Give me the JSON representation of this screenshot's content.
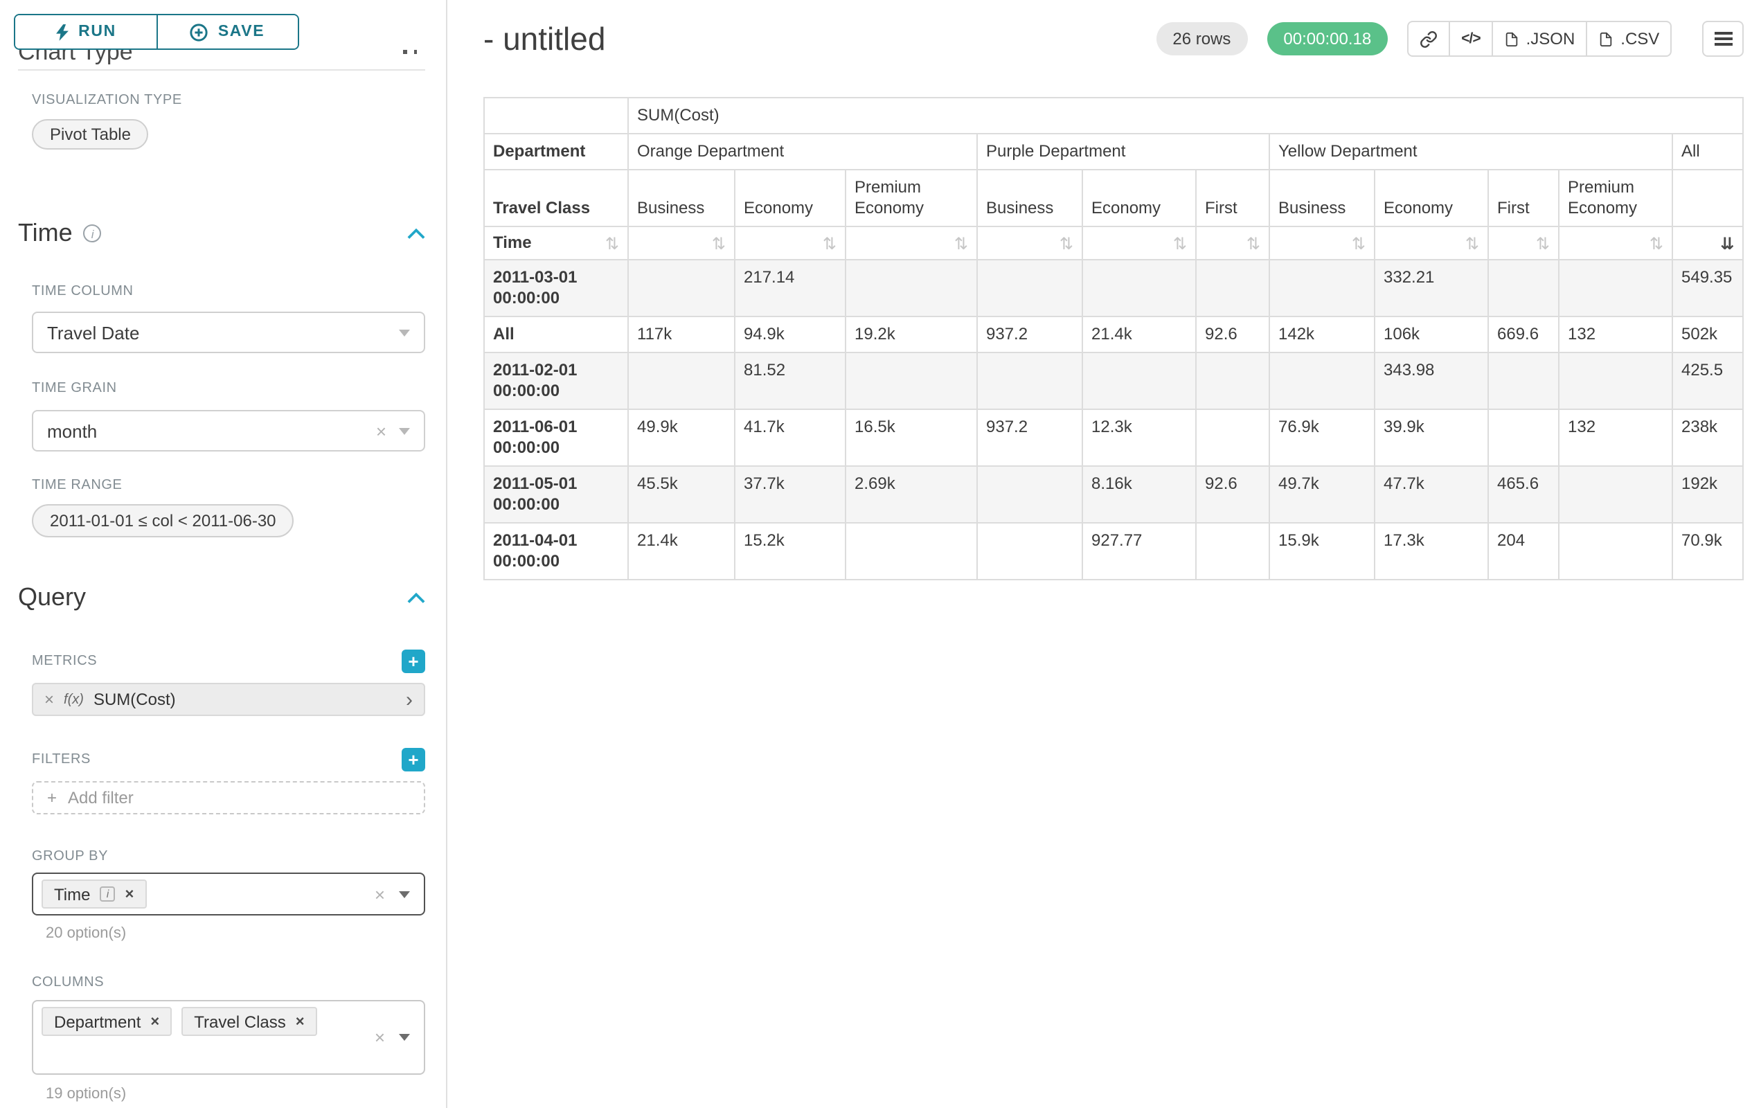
{
  "colors": {
    "primary": "#20a7c9",
    "button_teal": "#1b7688",
    "success_green": "#5ac189"
  },
  "icons": {
    "remove": "×",
    "clear": "×",
    "expand": "›",
    "add": "+",
    "info": "i",
    "sort": "⇅",
    "sort_desc": "⇊",
    "code": "</>"
  },
  "sidebar": {
    "run_label": "RUN",
    "save_label": "SAVE",
    "clipped_heading": "Chart Type",
    "viz_type_label": "VISUALIZATION TYPE",
    "viz_type_value": "Pivot Table",
    "time": {
      "title": "Time",
      "column_label": "TIME COLUMN",
      "column_value": "Travel Date",
      "grain_label": "TIME GRAIN",
      "grain_value": "month",
      "range_label": "TIME RANGE",
      "range_value": "2011-01-01 ≤ col < 2011-06-30"
    },
    "query": {
      "title": "Query",
      "metrics_label": "METRICS",
      "metric_fx": "f(x)",
      "metric_label": "SUM(Cost)",
      "filters_label": "FILTERS",
      "add_filter_label": "Add filter",
      "group_by_label": "GROUP BY",
      "group_by_chip": "Time",
      "group_by_hint": "20 option(s)",
      "columns_label": "COLUMNS",
      "columns_chips": [
        "Department",
        "Travel Class"
      ],
      "columns_hint": "19 option(s)"
    }
  },
  "header": {
    "title": "- untitled",
    "row_count_badge": "26 rows",
    "timer_badge": "00:00:00.18",
    "json_button": ".JSON",
    "csv_button": ".CSV"
  },
  "chart_data": {
    "type": "table",
    "metric_header": "SUM(Cost)",
    "col_dimension": "Department",
    "col_subdimension": "Travel Class",
    "row_dimension": "Time",
    "column_groups": [
      {
        "label": "Orange Department",
        "children": [
          "Business",
          "Economy",
          "Premium Economy"
        ]
      },
      {
        "label": "Purple Department",
        "children": [
          "Business",
          "Economy",
          "First"
        ]
      },
      {
        "label": "Yellow Department",
        "children": [
          "Business",
          "Economy",
          "First",
          "Premium Economy"
        ]
      },
      {
        "label": "All",
        "children": [
          ""
        ]
      }
    ],
    "rows": [
      {
        "label": "2011-03-01 00:00:00",
        "values": [
          "",
          "217.14",
          "",
          "",
          "",
          "",
          "",
          "332.21",
          "",
          "",
          "549.35"
        ]
      },
      {
        "label": "All",
        "values": [
          "117k",
          "94.9k",
          "19.2k",
          "937.2",
          "21.4k",
          "92.6",
          "142k",
          "106k",
          "669.6",
          "132",
          "502k"
        ]
      },
      {
        "label": "2011-02-01 00:00:00",
        "values": [
          "",
          "81.52",
          "",
          "",
          "",
          "",
          "",
          "343.98",
          "",
          "",
          "425.5"
        ]
      },
      {
        "label": "2011-06-01 00:00:00",
        "values": [
          "49.9k",
          "41.7k",
          "16.5k",
          "937.2",
          "12.3k",
          "",
          "76.9k",
          "39.9k",
          "",
          "132",
          "238k"
        ]
      },
      {
        "label": "2011-05-01 00:00:00",
        "values": [
          "45.5k",
          "37.7k",
          "2.69k",
          "",
          "8.16k",
          "92.6",
          "49.7k",
          "47.7k",
          "465.6",
          "",
          "192k"
        ]
      },
      {
        "label": "2011-04-01 00:00:00",
        "values": [
          "21.4k",
          "15.2k",
          "",
          "",
          "927.77",
          "",
          "15.9k",
          "17.3k",
          "204",
          "",
          "70.9k"
        ]
      }
    ]
  }
}
